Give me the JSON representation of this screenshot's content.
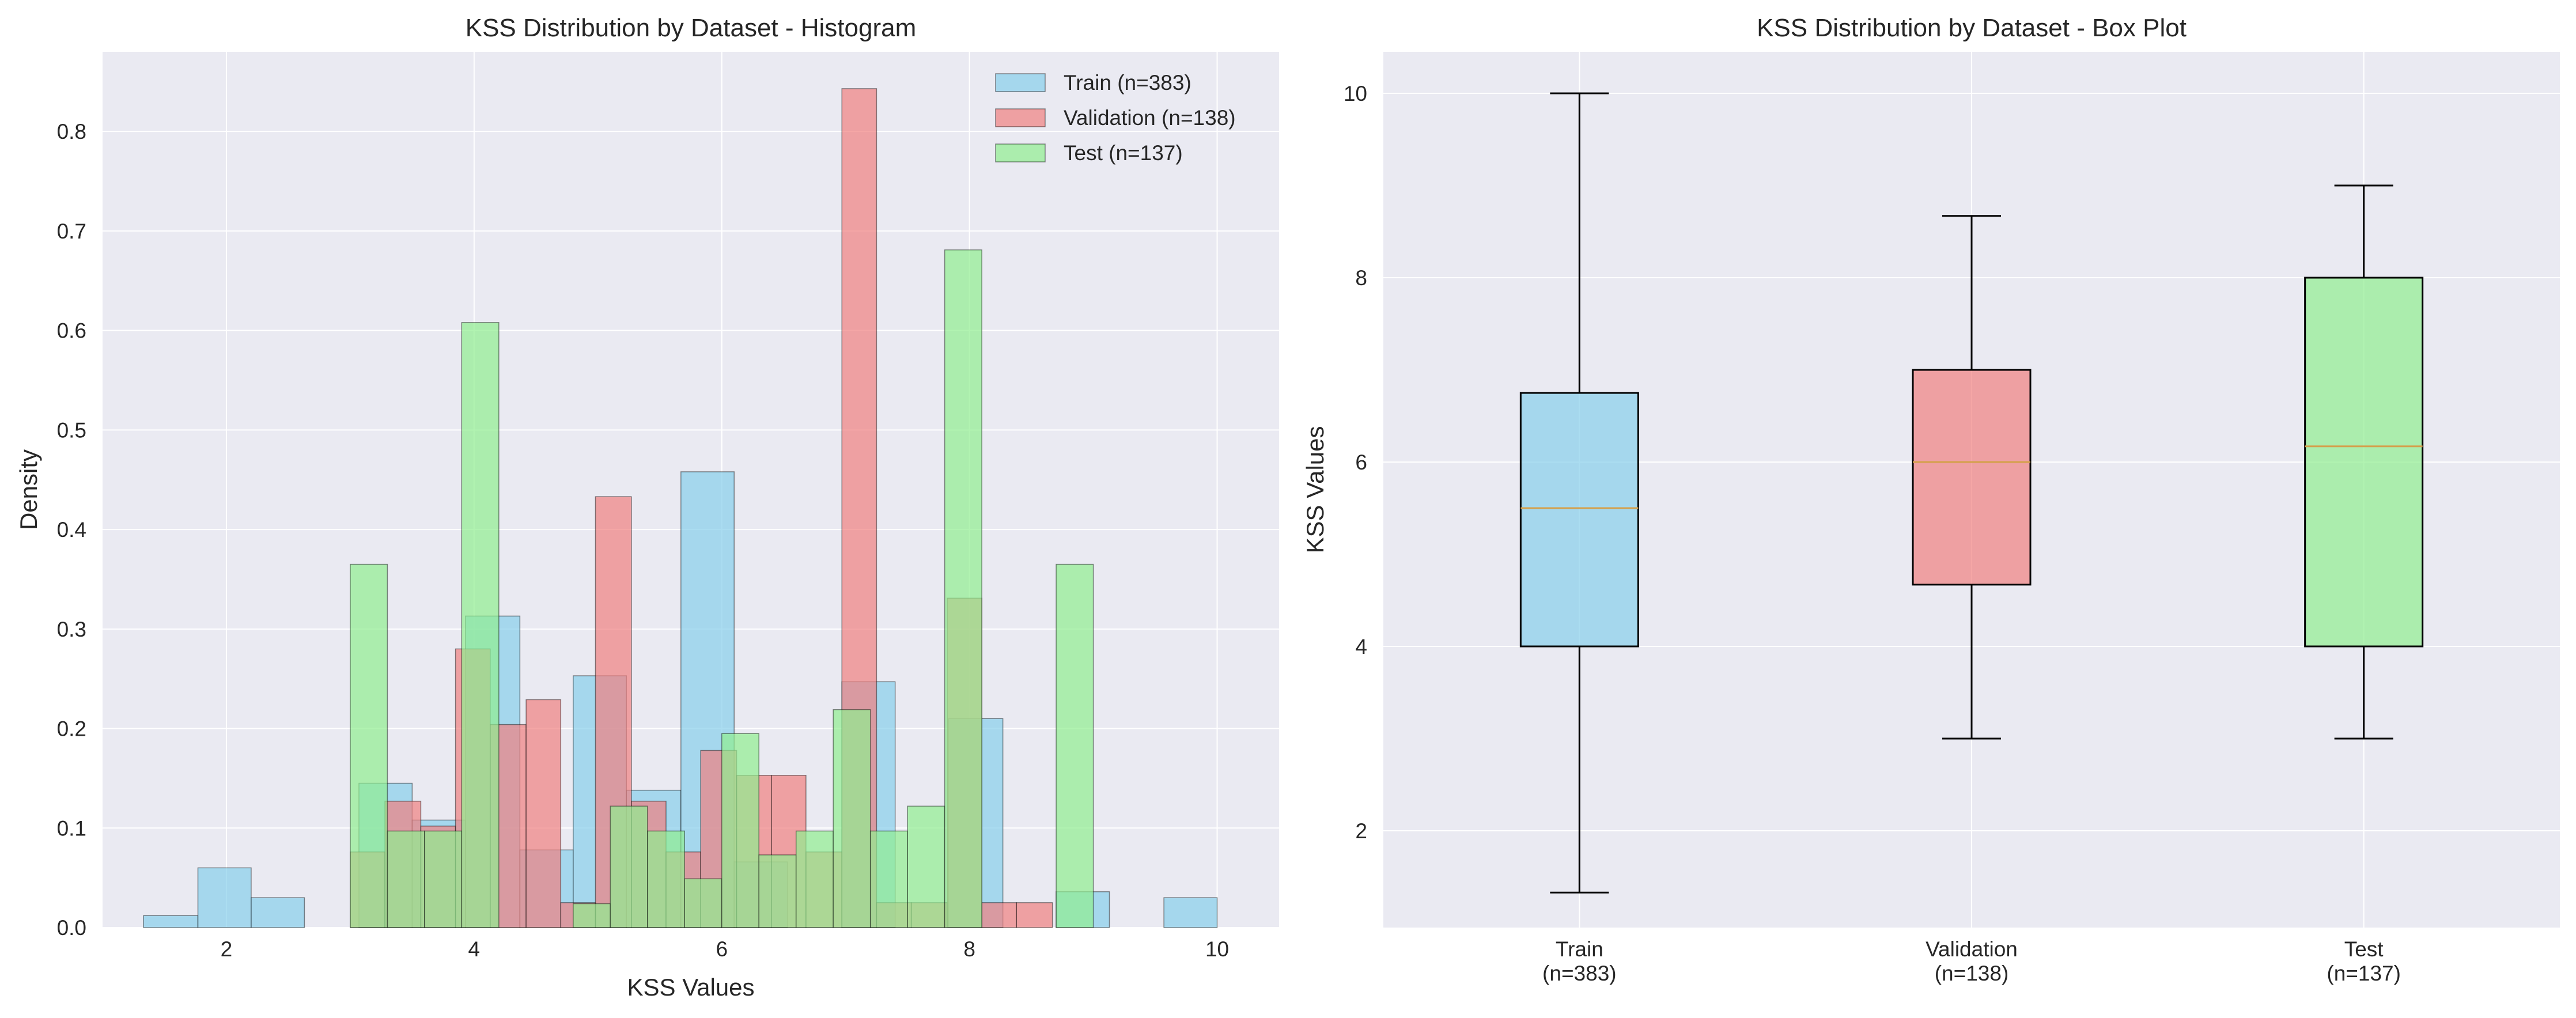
{
  "chart_data": [
    {
      "type": "histogram",
      "title": "KSS Distribution by Dataset - Histogram",
      "xlabel": "KSS Values",
      "ylabel": "Density",
      "xlim": [
        1.0,
        10.5
      ],
      "ylim": [
        0,
        0.88
      ],
      "xticks": [
        2,
        4,
        6,
        8,
        10
      ],
      "yticks": [
        0.0,
        0.1,
        0.2,
        0.3,
        0.4,
        0.5,
        0.6,
        0.7,
        0.8
      ],
      "grid": true,
      "legend_position": "top-right",
      "series": [
        {
          "name": "Train (n=383)",
          "color": "#87CEEB",
          "bins": [
            {
              "x0": 1.33,
              "x1": 1.77,
              "density": 0.012
            },
            {
              "x0": 1.77,
              "x1": 2.2,
              "density": 0.06
            },
            {
              "x0": 2.2,
              "x1": 2.63,
              "density": 0.03
            },
            {
              "x0": 3.07,
              "x1": 3.5,
              "density": 0.145
            },
            {
              "x0": 3.5,
              "x1": 3.93,
              "density": 0.108
            },
            {
              "x0": 3.93,
              "x1": 4.37,
              "density": 0.313
            },
            {
              "x0": 4.37,
              "x1": 4.8,
              "density": 0.078
            },
            {
              "x0": 4.8,
              "x1": 5.23,
              "density": 0.253
            },
            {
              "x0": 5.23,
              "x1": 5.67,
              "density": 0.138
            },
            {
              "x0": 5.67,
              "x1": 6.1,
              "density": 0.458
            },
            {
              "x0": 6.1,
              "x1": 6.53,
              "density": 0.066
            },
            {
              "x0": 6.97,
              "x1": 7.4,
              "density": 0.247
            },
            {
              "x0": 7.83,
              "x1": 8.27,
              "density": 0.21
            },
            {
              "x0": 8.7,
              "x1": 9.13,
              "density": 0.036
            },
            {
              "x0": 9.57,
              "x1": 10.0,
              "density": 0.03
            }
          ]
        },
        {
          "name": "Validation (n=138)",
          "color": "#F08080",
          "bins": [
            {
              "x0": 3.0,
              "x1": 3.28,
              "density": 0.076
            },
            {
              "x0": 3.28,
              "x1": 3.57,
              "density": 0.127
            },
            {
              "x0": 3.57,
              "x1": 3.85,
              "density": 0.102
            },
            {
              "x0": 3.85,
              "x1": 4.13,
              "density": 0.28
            },
            {
              "x0": 4.13,
              "x1": 4.42,
              "density": 0.204
            },
            {
              "x0": 4.42,
              "x1": 4.7,
              "density": 0.229
            },
            {
              "x0": 4.7,
              "x1": 4.98,
              "density": 0.025
            },
            {
              "x0": 4.98,
              "x1": 5.27,
              "density": 0.433
            },
            {
              "x0": 5.27,
              "x1": 5.55,
              "density": 0.127
            },
            {
              "x0": 5.55,
              "x1": 5.83,
              "density": 0.076
            },
            {
              "x0": 5.83,
              "x1": 6.12,
              "density": 0.178
            },
            {
              "x0": 6.12,
              "x1": 6.4,
              "density": 0.153
            },
            {
              "x0": 6.4,
              "x1": 6.68,
              "density": 0.153
            },
            {
              "x0": 6.68,
              "x1": 6.97,
              "density": 0.076
            },
            {
              "x0": 6.97,
              "x1": 7.25,
              "density": 0.843
            },
            {
              "x0": 7.25,
              "x1": 7.53,
              "density": 0.025
            },
            {
              "x0": 7.53,
              "x1": 7.82,
              "density": 0.025
            },
            {
              "x0": 7.82,
              "x1": 8.1,
              "density": 0.331
            },
            {
              "x0": 8.1,
              "x1": 8.38,
              "density": 0.025
            },
            {
              "x0": 8.38,
              "x1": 8.67,
              "density": 0.025
            }
          ]
        },
        {
          "name": "Test (n=137)",
          "color": "#90EE90",
          "bins": [
            {
              "x0": 3.0,
              "x1": 3.3,
              "density": 0.365
            },
            {
              "x0": 3.3,
              "x1": 3.6,
              "density": 0.097
            },
            {
              "x0": 3.6,
              "x1": 3.9,
              "density": 0.097
            },
            {
              "x0": 3.9,
              "x1": 4.2,
              "density": 0.608
            },
            {
              "x0": 4.8,
              "x1": 5.1,
              "density": 0.024
            },
            {
              "x0": 5.1,
              "x1": 5.4,
              "density": 0.122
            },
            {
              "x0": 5.4,
              "x1": 5.7,
              "density": 0.097
            },
            {
              "x0": 5.7,
              "x1": 6.0,
              "density": 0.049
            },
            {
              "x0": 6.0,
              "x1": 6.3,
              "density": 0.195
            },
            {
              "x0": 6.3,
              "x1": 6.6,
              "density": 0.073
            },
            {
              "x0": 6.6,
              "x1": 6.9,
              "density": 0.097
            },
            {
              "x0": 6.9,
              "x1": 7.2,
              "density": 0.219
            },
            {
              "x0": 7.2,
              "x1": 7.5,
              "density": 0.097
            },
            {
              "x0": 7.5,
              "x1": 7.8,
              "density": 0.122
            },
            {
              "x0": 7.8,
              "x1": 8.1,
              "density": 0.681
            },
            {
              "x0": 8.7,
              "x1": 9.0,
              "density": 0.365
            }
          ]
        }
      ]
    },
    {
      "type": "box",
      "title": "KSS Distribution by Dataset - Box Plot",
      "xlabel": "",
      "ylabel": "KSS Values",
      "ylim": [
        0.95,
        10.45
      ],
      "yticks": [
        2,
        4,
        6,
        8,
        10
      ],
      "grid": true,
      "categories": [
        {
          "label_line1": "Train",
          "label_line2": "(n=383)",
          "color": "#87CEEB",
          "min": 1.33,
          "q1": 4.0,
          "median": 5.5,
          "q3": 6.75,
          "max": 10.0
        },
        {
          "label_line1": "Validation",
          "label_line2": "(n=138)",
          "color": "#F08080",
          "min": 3.0,
          "q1": 4.67,
          "median": 6.0,
          "q3": 7.0,
          "max": 8.67
        },
        {
          "label_line1": "Test",
          "label_line2": "(n=137)",
          "color": "#90EE90",
          "min": 3.0,
          "q1": 4.0,
          "median": 6.17,
          "q3": 8.0,
          "max": 9.0
        }
      ],
      "median_color": "#D4A04C"
    }
  ]
}
